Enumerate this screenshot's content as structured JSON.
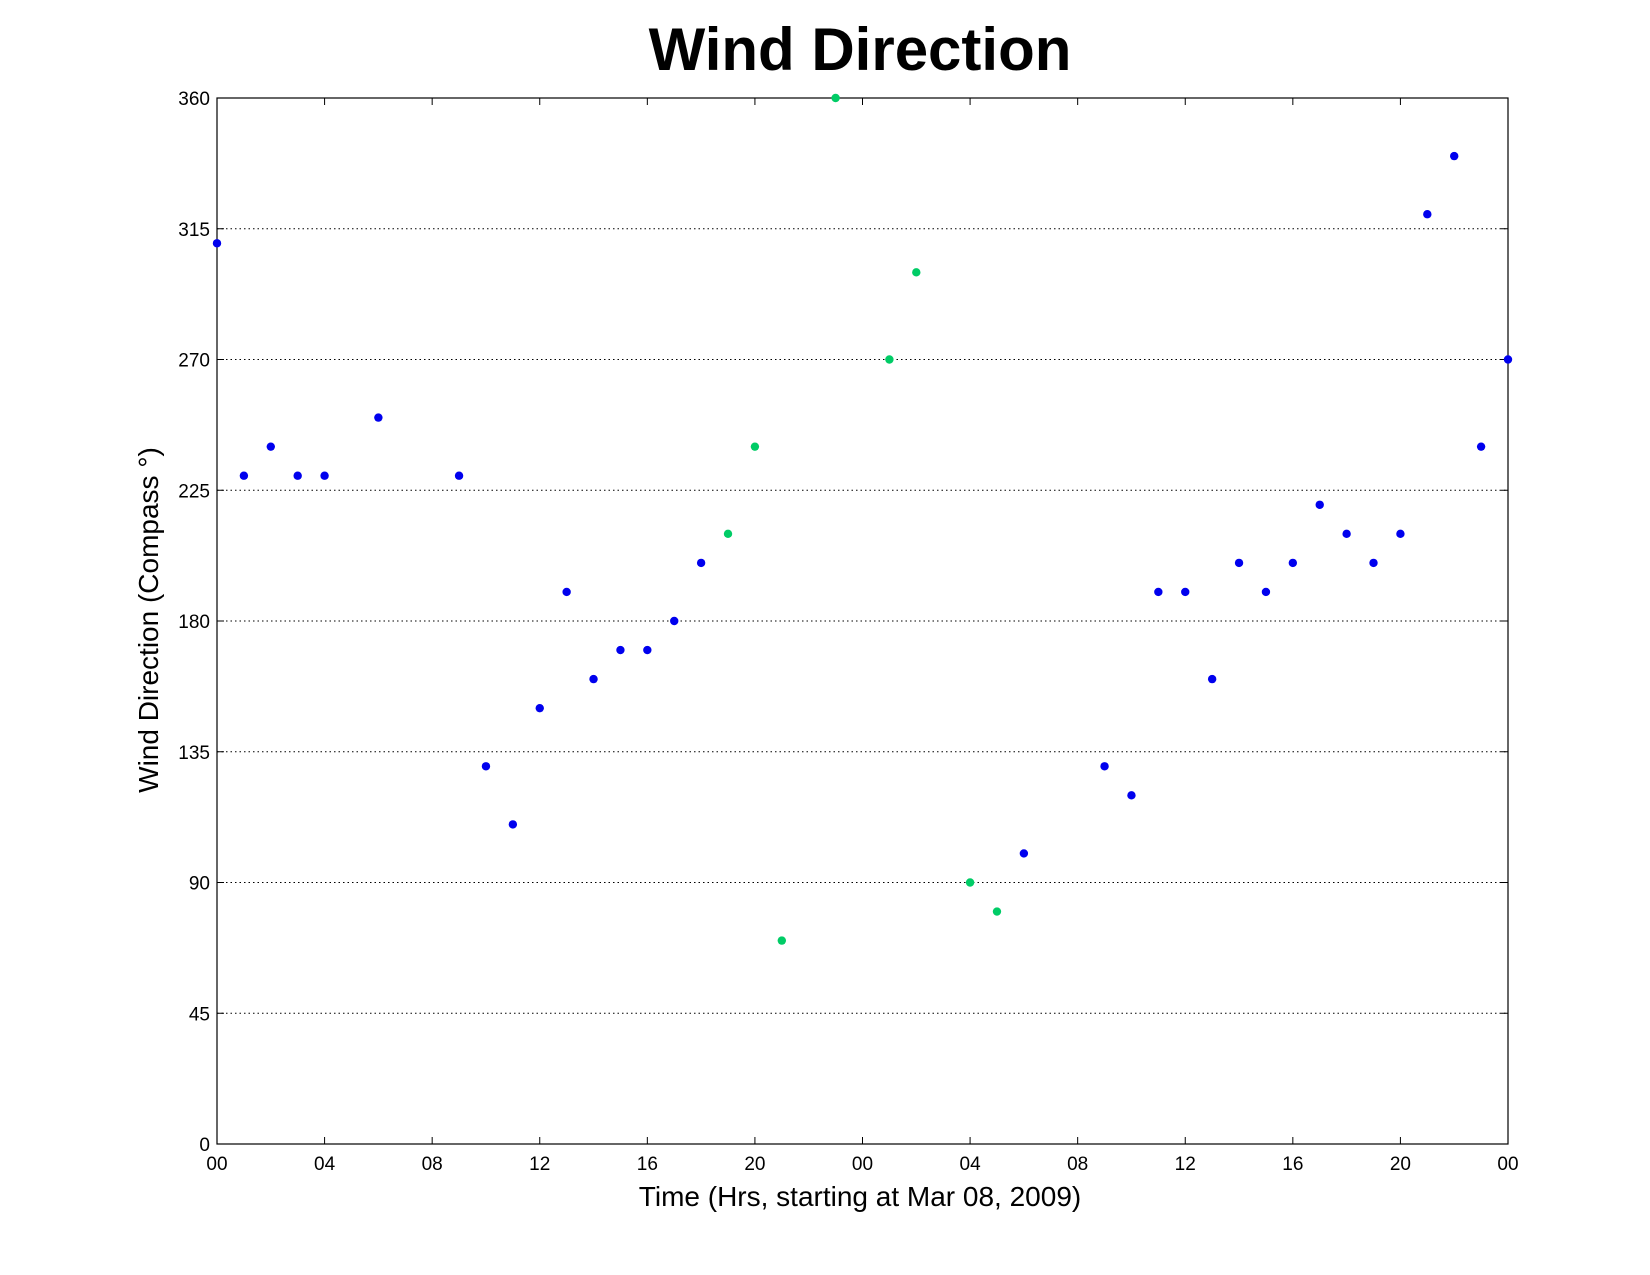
{
  "chart_data": {
    "type": "scatter",
    "title": "Wind Direction",
    "xlabel": "Time (Hrs, starting at Mar 08, 2009)",
    "ylabel": "Wind Direction (Compass  °)",
    "xlim": [
      "2009-03-08 00:00",
      "2009-03-10 00:00"
    ],
    "ylim": [
      0,
      360
    ],
    "x_ticks": [
      {
        "label": "00",
        "time": "2009-03-08 00:00"
      },
      {
        "label": "04",
        "time": "2009-03-08 04:00"
      },
      {
        "label": "08",
        "time": "2009-03-08 08:00"
      },
      {
        "label": "12",
        "time": "2009-03-08 12:00"
      },
      {
        "label": "16",
        "time": "2009-03-08 16:00"
      },
      {
        "label": "20",
        "time": "2009-03-08 20:00"
      },
      {
        "label": "00",
        "time": "2009-03-09 00:00"
      },
      {
        "label": "04",
        "time": "2009-03-09 04:00"
      },
      {
        "label": "08",
        "time": "2009-03-09 08:00"
      },
      {
        "label": "12",
        "time": "2009-03-09 12:00"
      },
      {
        "label": "16",
        "time": "2009-03-09 16:00"
      },
      {
        "label": "20",
        "time": "2009-03-09 20:00"
      },
      {
        "label": "00",
        "time": "2009-03-10 00:00"
      }
    ],
    "y_ticks": [
      0,
      45,
      90,
      135,
      180,
      225,
      270,
      315,
      360
    ],
    "grid": "horizontal dotted",
    "series": [
      {
        "color": "#0000ee",
        "points": [
          {
            "time": "2009-03-08 00:00",
            "y": 310
          },
          {
            "time": "2009-03-08 01:00",
            "y": 230
          },
          {
            "time": "2009-03-08 02:00",
            "y": 240
          },
          {
            "time": "2009-03-08 03:00",
            "y": 230
          },
          {
            "time": "2009-03-08 04:00",
            "y": 230
          },
          {
            "time": "2009-03-08 06:00",
            "y": 250
          },
          {
            "time": "2009-03-08 09:00",
            "y": 230
          },
          {
            "time": "2009-03-08 10:00",
            "y": 130
          },
          {
            "time": "2009-03-08 11:00",
            "y": 110
          },
          {
            "time": "2009-03-08 12:00",
            "y": 150
          },
          {
            "time": "2009-03-08 13:00",
            "y": 190
          },
          {
            "time": "2009-03-08 14:00",
            "y": 160
          },
          {
            "time": "2009-03-08 15:00",
            "y": 170
          },
          {
            "time": "2009-03-08 16:00",
            "y": 170
          },
          {
            "time": "2009-03-08 17:00",
            "y": 180
          },
          {
            "time": "2009-03-08 18:00",
            "y": 200
          },
          {
            "time": "2009-03-09 06:00",
            "y": 100
          },
          {
            "time": "2009-03-09 09:00",
            "y": 130
          },
          {
            "time": "2009-03-09 10:00",
            "y": 120
          },
          {
            "time": "2009-03-09 11:00",
            "y": 190
          },
          {
            "time": "2009-03-09 12:00",
            "y": 190
          },
          {
            "time": "2009-03-09 13:00",
            "y": 160
          },
          {
            "time": "2009-03-09 14:00",
            "y": 200
          },
          {
            "time": "2009-03-09 15:00",
            "y": 190
          },
          {
            "time": "2009-03-09 16:00",
            "y": 200
          },
          {
            "time": "2009-03-09 17:00",
            "y": 220
          },
          {
            "time": "2009-03-09 18:00",
            "y": 210
          },
          {
            "time": "2009-03-09 19:00",
            "y": 200
          },
          {
            "time": "2009-03-09 20:00",
            "y": 210
          },
          {
            "time": "2009-03-09 21:00",
            "y": 320
          },
          {
            "time": "2009-03-09 22:00",
            "y": 340
          },
          {
            "time": "2009-03-09 23:00",
            "y": 240
          },
          {
            "time": "2009-03-10 00:00",
            "y": 270
          }
        ]
      },
      {
        "color": "#00cc66",
        "points": [
          {
            "time": "2009-03-08 19:00",
            "y": 210
          },
          {
            "time": "2009-03-08 20:00",
            "y": 240
          },
          {
            "time": "2009-03-08 21:00",
            "y": 70
          },
          {
            "time": "2009-03-08 23:00",
            "y": 360
          },
          {
            "time": "2009-03-09 01:00",
            "y": 270
          },
          {
            "time": "2009-03-09 02:00",
            "y": 300
          },
          {
            "time": "2009-03-09 04:00",
            "y": 90
          },
          {
            "time": "2009-03-09 05:00",
            "y": 80
          }
        ]
      }
    ]
  }
}
